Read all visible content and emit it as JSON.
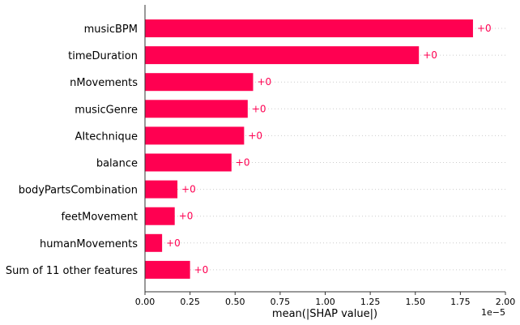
{
  "chart_data": {
    "type": "bar",
    "orientation": "horizontal",
    "categories": [
      "musicBPM",
      "timeDuration",
      "nMovements",
      "musicGenre",
      "AItechnique",
      "balance",
      "bodyPartsCombination",
      "feetMovement",
      "humanMovements",
      "Sum of 11 other features"
    ],
    "values": [
      1.82e-05,
      1.52e-05,
      6e-06,
      5.7e-06,
      5.5e-06,
      4.8e-06,
      1.8e-06,
      1.65e-06,
      9.5e-07,
      2.5e-06
    ],
    "value_labels": [
      "+0",
      "+0",
      "+0",
      "+0",
      "+0",
      "+0",
      "+0",
      "+0",
      "+0",
      "+0"
    ],
    "xlabel": "mean(|SHAP value|)",
    "x_offset_label": "1e−5",
    "xlim": [
      0,
      2e-05
    ],
    "ticks": [
      0,
      2.5e-06,
      5e-06,
      7.5e-06,
      1e-05,
      1.25e-05,
      1.5e-05,
      1.75e-05,
      2e-05
    ],
    "tick_labels": [
      "0.00",
      "0.25",
      "0.50",
      "0.75",
      "1.00",
      "1.25",
      "1.50",
      "1.75",
      "2.00"
    ],
    "bar_color": "#ff0051",
    "grid": "horizontal dotted"
  }
}
